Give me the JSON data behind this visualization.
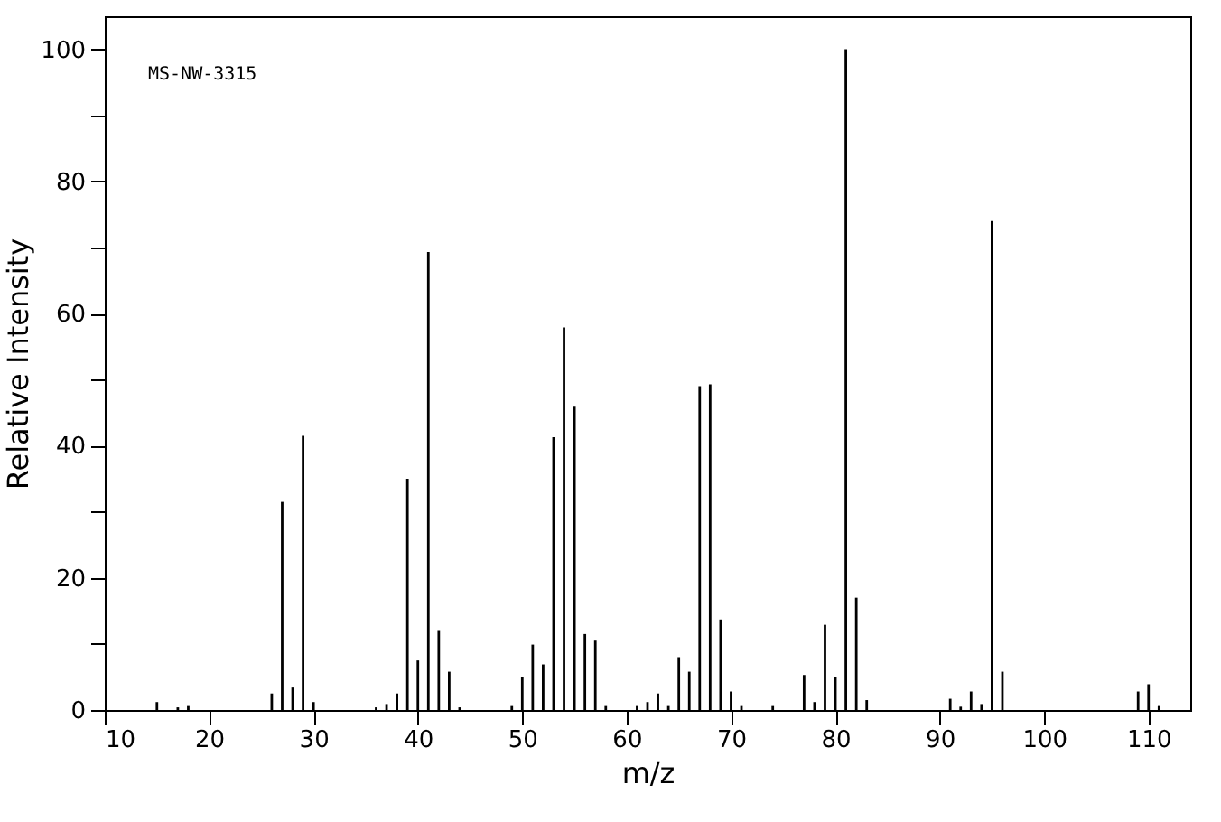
{
  "chart_data": {
    "type": "bar",
    "xlabel": "m/z",
    "ylabel": "Relative Intensity",
    "annotations": [
      "MS-NW-3315"
    ],
    "x": [
      15,
      17,
      18,
      26,
      27,
      28,
      29,
      30,
      36,
      37,
      38,
      39,
      40,
      41,
      42,
      43,
      44,
      49,
      50,
      51,
      52,
      53,
      54,
      55,
      56,
      57,
      58,
      61,
      62,
      63,
      64,
      65,
      66,
      67,
      68,
      69,
      70,
      71,
      74,
      77,
      78,
      79,
      80,
      81,
      82,
      83,
      91,
      92,
      93,
      94,
      95,
      96,
      109,
      110,
      111
    ],
    "series": [
      {
        "color": "#000000",
        "values": [
          1.2,
          0.4,
          0.6,
          2.5,
          31.5,
          3.4,
          41.5,
          1.2,
          0.4,
          0.9,
          2.5,
          35,
          7.5,
          69.3,
          12.1,
          5.8,
          0.4,
          0.6,
          5.0,
          9.9,
          6.9,
          41.3,
          57.9,
          45.9,
          11.5,
          10.5,
          0.6,
          0.6,
          1.2,
          2.5,
          0.6,
          8.0,
          5.8,
          49,
          49.3,
          13.7,
          2.8,
          0.6,
          0.6,
          5.3,
          1.2,
          12.9,
          5.0,
          100,
          17,
          1.5,
          1.7,
          0.5,
          2.8,
          0.9,
          74,
          5.8,
          2.8,
          3.9,
          0.6
        ]
      }
    ],
    "xlim": [
      10,
      114
    ],
    "xticks": [
      10,
      20,
      30,
      40,
      50,
      60,
      70,
      80,
      90,
      100,
      110
    ],
    "ylim": [
      0,
      105
    ],
    "yticks": [
      0,
      {
        "value": 10,
        "label": null
      },
      20,
      {
        "value": 30,
        "label": null
      },
      40,
      {
        "value": 50,
        "label": null
      },
      60,
      {
        "value": 70,
        "label": null
      },
      80,
      {
        "value": 90,
        "label": null
      },
      100
    ]
  }
}
